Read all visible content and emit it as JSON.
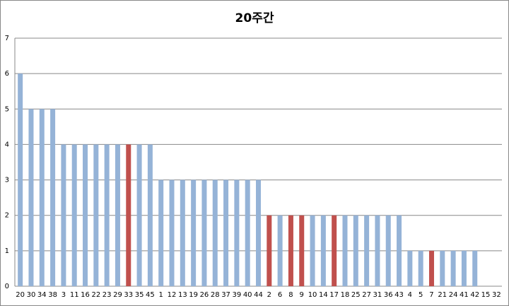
{
  "chart_data": {
    "type": "bar",
    "title": "20주간",
    "categories": [
      "20",
      "30",
      "34",
      "38",
      "3",
      "11",
      "16",
      "22",
      "23",
      "29",
      "33",
      "35",
      "45",
      "1",
      "12",
      "13",
      "19",
      "26",
      "28",
      "37",
      "39",
      "40",
      "44",
      "2",
      "6",
      "8",
      "9",
      "10",
      "14",
      "17",
      "18",
      "25",
      "27",
      "31",
      "36",
      "43",
      "4",
      "5",
      "7",
      "21",
      "24",
      "41",
      "42",
      "15",
      "32"
    ],
    "values": [
      6,
      5,
      5,
      5,
      4,
      4,
      4,
      4,
      4,
      4,
      4,
      4,
      4,
      3,
      3,
      3,
      3,
      3,
      3,
      3,
      3,
      3,
      3,
      2,
      2,
      2,
      2,
      2,
      2,
      2,
      2,
      2,
      2,
      2,
      2,
      2,
      1,
      1,
      1,
      1,
      1,
      1,
      1,
      0,
      0
    ],
    "colors": [
      "#95b3d7",
      "#95b3d7",
      "#95b3d7",
      "#95b3d7",
      "#95b3d7",
      "#95b3d7",
      "#95b3d7",
      "#95b3d7",
      "#95b3d7",
      "#95b3d7",
      "#c0504d",
      "#95b3d7",
      "#95b3d7",
      "#95b3d7",
      "#95b3d7",
      "#95b3d7",
      "#95b3d7",
      "#95b3d7",
      "#95b3d7",
      "#95b3d7",
      "#95b3d7",
      "#95b3d7",
      "#95b3d7",
      "#c0504d",
      "#95b3d7",
      "#c0504d",
      "#c0504d",
      "#95b3d7",
      "#95b3d7",
      "#c0504d",
      "#95b3d7",
      "#95b3d7",
      "#95b3d7",
      "#95b3d7",
      "#95b3d7",
      "#95b3d7",
      "#95b3d7",
      "#95b3d7",
      "#c0504d",
      "#95b3d7",
      "#95b3d7",
      "#95b3d7",
      "#95b3d7",
      "#95b3d7",
      "#95b3d7"
    ],
    "ylim": [
      0,
      7
    ],
    "yticks": [
      0,
      1,
      2,
      3,
      4,
      5,
      6,
      7
    ],
    "grid": true
  }
}
